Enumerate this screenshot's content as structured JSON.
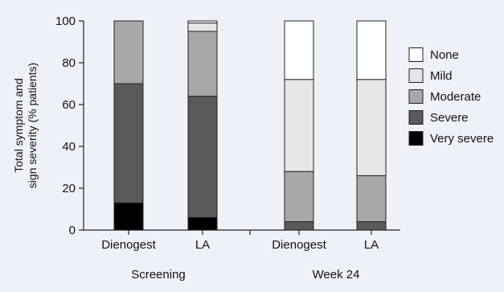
{
  "chart_data": {
    "type": "bar",
    "stacked": true,
    "title": "",
    "xlabel": "",
    "ylabel_lines": [
      "Total symptom and",
      "sign severity (% patients)"
    ],
    "ylim": [
      0,
      100
    ],
    "yticks": [
      0,
      20,
      40,
      60,
      80,
      100
    ],
    "groups": [
      {
        "label": "Screening",
        "categories": [
          "Dienogest",
          "LA"
        ]
      },
      {
        "label": "Week 24",
        "categories": [
          "Dienogest",
          "LA"
        ]
      }
    ],
    "categories": [
      "Dienogest",
      "LA",
      "Dienogest",
      "LA"
    ],
    "series": [
      {
        "name": "Very severe",
        "color": "#000000",
        "values": [
          13,
          6,
          0,
          0
        ]
      },
      {
        "name": "Severe",
        "color": "#5a5a5a",
        "values": [
          57,
          58,
          4,
          4
        ]
      },
      {
        "name": "Moderate",
        "color": "#a8a8a8",
        "values": [
          30,
          31,
          24,
          22
        ]
      },
      {
        "name": "Mild",
        "color": "#e6e6e6",
        "values": [
          0,
          4,
          44,
          46
        ]
      },
      {
        "name": "None",
        "color": "#ffffff",
        "values": [
          0,
          1,
          28,
          28
        ]
      }
    ],
    "legend_order": [
      "None",
      "Mild",
      "Moderate",
      "Severe",
      "Very severe"
    ],
    "legend_position": "right",
    "grid": false
  }
}
